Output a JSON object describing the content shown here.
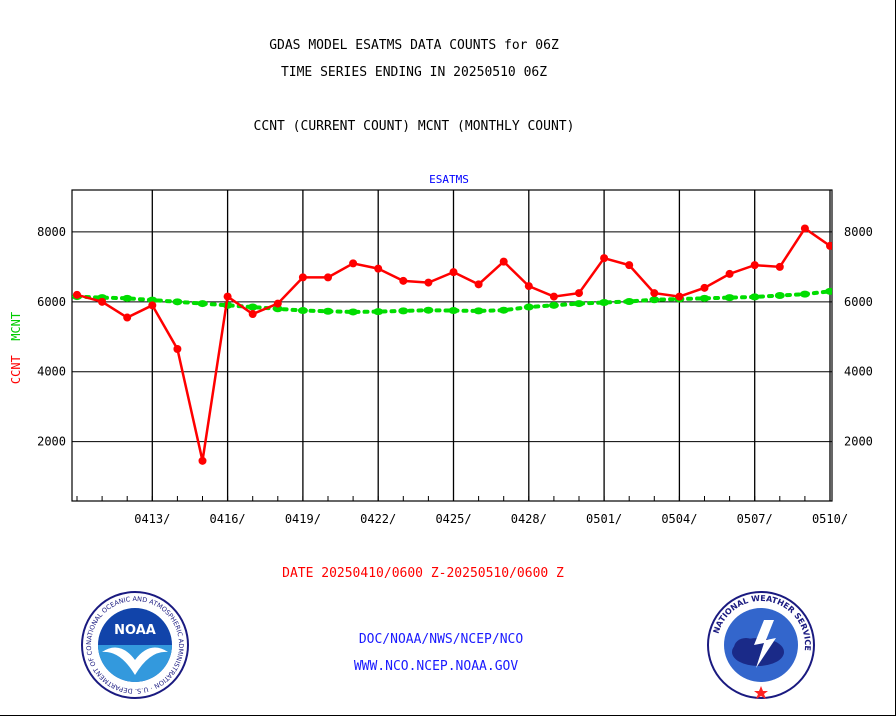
{
  "header": {
    "title_line1": "GDAS MODEL ESATMS DATA COUNTS for 06Z",
    "title_line2": "TIME SERIES ENDING IN 20250510 06Z",
    "subtitle": "CCNT (CURRENT COUNT) MCNT (MONTHLY COUNT)"
  },
  "footer": {
    "date_range": "DATE 20250410/0600 Z-20250510/0600 Z",
    "credit_line1": "DOC/NOAA/NWS/NCEP/NCO",
    "credit_line2": "WWW.NCO.NCEP.NOAA.GOV"
  },
  "logos": {
    "noaa_text": "NOAA",
    "noaa_ring_text": "NATIONAL OCEANIC AND ATMOSPHERIC ADMINISTRATION · U.S. DEPARTMENT OF COMMERCE",
    "nws_ring_text": "NATIONAL WEATHER SERVICE"
  },
  "chart_data": {
    "type": "line",
    "panel_title": "ESATMS",
    "ylabel_current": "CCNT",
    "ylabel_monthly": "MCNT",
    "ylim": [
      300,
      9200
    ],
    "yticks": [
      2000,
      4000,
      6000,
      8000
    ],
    "x_day_range": [
      0,
      30
    ],
    "xticks": [
      {
        "day": 3,
        "label": "0413/"
      },
      {
        "day": 6,
        "label": "0416/"
      },
      {
        "day": 9,
        "label": "0419/"
      },
      {
        "day": 12,
        "label": "0422/"
      },
      {
        "day": 15,
        "label": "0425/"
      },
      {
        "day": 18,
        "label": "0428/"
      },
      {
        "day": 21,
        "label": "0501/"
      },
      {
        "day": 24,
        "label": "0504/"
      },
      {
        "day": 27,
        "label": "0507/"
      },
      {
        "day": 30,
        "label": "0510/"
      }
    ],
    "grid": true,
    "colors": {
      "current": "#ff0000",
      "monthly": "#00dd00",
      "title": "#0000ff"
    },
    "series": [
      {
        "name": "CCNT",
        "style": "solid",
        "x": [
          0,
          1,
          2,
          3,
          4,
          5,
          6,
          7,
          8,
          9,
          10,
          11,
          12,
          13,
          14,
          15,
          16,
          17,
          18,
          19,
          20,
          21,
          22,
          23,
          24,
          25,
          26,
          27,
          28,
          29,
          30
        ],
        "values": [
          6200,
          6000,
          5550,
          5900,
          4650,
          1450,
          6150,
          5650,
          5950,
          6700,
          6700,
          7100,
          6950,
          6600,
          6550,
          6850,
          6500,
          7150,
          6450,
          6150,
          6250,
          7250,
          7050,
          6250,
          6150,
          6400,
          6800,
          7050,
          7000,
          8100,
          7600
        ]
      },
      {
        "name": "MCNT",
        "style": "dotted",
        "x": [
          0,
          1,
          2,
          3,
          4,
          5,
          6,
          7,
          8,
          9,
          10,
          11,
          12,
          13,
          14,
          15,
          16,
          17,
          18,
          19,
          20,
          21,
          22,
          23,
          24,
          25,
          26,
          27,
          28,
          29,
          30
        ],
        "values": [
          6150,
          6120,
          6100,
          6050,
          6000,
          5950,
          5900,
          5850,
          5800,
          5750,
          5730,
          5710,
          5720,
          5740,
          5760,
          5750,
          5740,
          5760,
          5850,
          5900,
          5950,
          5980,
          6010,
          6060,
          6080,
          6100,
          6120,
          6140,
          6180,
          6220,
          6300
        ]
      }
    ]
  }
}
